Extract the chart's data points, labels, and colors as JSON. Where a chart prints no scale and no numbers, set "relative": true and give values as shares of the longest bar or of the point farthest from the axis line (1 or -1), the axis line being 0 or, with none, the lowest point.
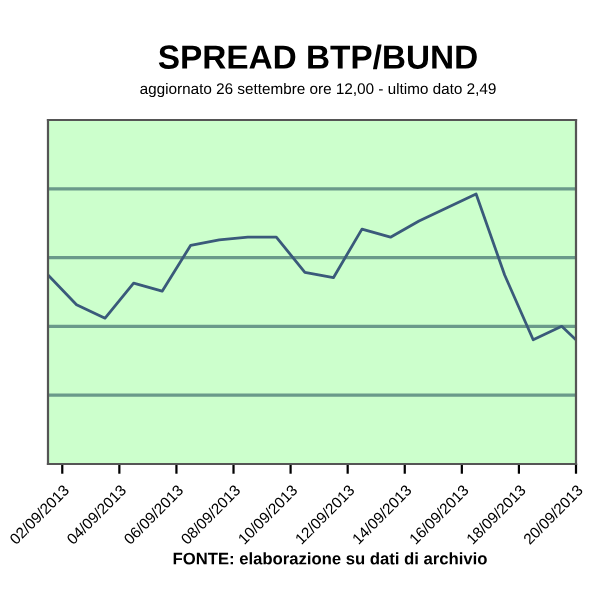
{
  "chart_data": {
    "type": "line",
    "title": "SPREAD BTP/BUND",
    "subtitle": "aggiornato 26 settembre ore 12,00 - ultimo dato 2,49",
    "x": [
      "2013-09-01T12:00",
      "2013-09-02T12:00",
      "2013-09-03T12:00",
      "2013-09-04T12:00",
      "2013-09-05T12:00",
      "2013-09-06T12:00",
      "2013-09-07T12:00",
      "2013-09-08T12:00",
      "2013-09-09T12:00",
      "2013-09-10T12:00",
      "2013-09-11T12:00",
      "2013-09-12T12:00",
      "2013-09-13T12:00",
      "2013-09-14T12:00",
      "2013-09-15T12:00",
      "2013-09-16T12:00",
      "2013-09-17T12:00",
      "2013-09-18T12:00",
      "2013-09-19T12:00",
      "2013-09-20T00:00"
    ],
    "series": [
      {
        "color": "#3a5a7a",
        "values": [
          0.7,
          0.59,
          0.54,
          0.67,
          0.64,
          0.81,
          0.83,
          0.84,
          0.84,
          0.71,
          0.69,
          0.87,
          0.84,
          0.9,
          0.95,
          1.0,
          0.7,
          0.46,
          0.51,
          0.46
        ]
      }
    ],
    "relative": true,
    "xlim": [
      "2013-09-01T12:00",
      "2013-09-20T00:00"
    ],
    "xticks": [
      {
        "value": "2013-09-02",
        "label": "02/09/2013"
      },
      {
        "value": "2013-09-04",
        "label": "04/09/2013"
      },
      {
        "value": "2013-09-06",
        "label": "06/09/2013"
      },
      {
        "value": "2013-09-08",
        "label": "08/09/2013"
      },
      {
        "value": "2013-09-10",
        "label": "10/09/2013"
      },
      {
        "value": "2013-09-12",
        "label": "12/09/2013"
      },
      {
        "value": "2013-09-14",
        "label": "14/09/2013"
      },
      {
        "value": "2013-09-16",
        "label": "16/09/2013"
      },
      {
        "value": "2013-09-18",
        "label": "18/09/2013"
      },
      {
        "value": "2013-09-20",
        "label": "20/09/2013"
      }
    ],
    "ref_lines": [
      {
        "axis": "y",
        "value": 0.2548,
        "color": "#6a9a8a"
      },
      {
        "axis": "y",
        "value": 0.5096,
        "color": "#6a9a8a"
      },
      {
        "axis": "y",
        "value": 0.7644,
        "color": "#6a9a8a"
      },
      {
        "axis": "y",
        "value": 1.0192,
        "color": "#6a9a8a"
      }
    ],
    "tick_labels": "x",
    "marker": "none",
    "line_style": "solid",
    "legend": false,
    "annotations": [
      "FONTE: elaborazione su dati di archivio"
    ]
  }
}
